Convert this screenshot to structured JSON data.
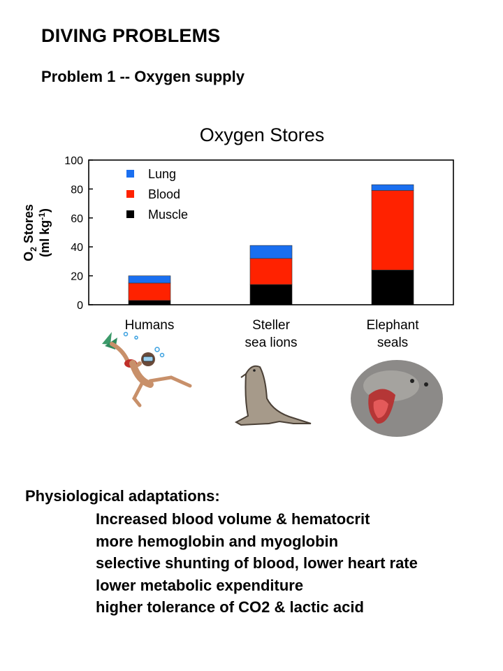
{
  "slide": {
    "title": "DIVING PROBLEMS",
    "subtitle": "Problem 1 -- Oxygen supply"
  },
  "chart_data": {
    "type": "bar",
    "stacked": true,
    "title": "Oxygen Stores",
    "ylabel": "O2 Stores (ml kg-1)",
    "xlabel": "",
    "ylim": [
      0,
      100
    ],
    "yticks": [
      0,
      20,
      40,
      60,
      80,
      100
    ],
    "grid": false,
    "legend_position": "top-left",
    "categories": [
      "Humans",
      "Steller sea lions",
      "Elephant seals"
    ],
    "category_lines": [
      [
        "Humans"
      ],
      [
        "Steller",
        "sea lions"
      ],
      [
        "Elephant",
        "seals"
      ]
    ],
    "series": [
      {
        "name": "Muscle",
        "color": "#000000",
        "values": [
          3,
          14,
          24
        ]
      },
      {
        "name": "Blood",
        "color": "#ff2200",
        "values": [
          12,
          18,
          55
        ]
      },
      {
        "name": "Lung",
        "color": "#1a6ff0",
        "values": [
          5,
          9,
          4
        ]
      }
    ],
    "legend_order": [
      "Lung",
      "Blood",
      "Muscle"
    ]
  },
  "illustrations": [
    "scuba-diver",
    "sea-lion",
    "elephant-seal"
  ],
  "adaptations": {
    "heading": "Physiological adaptations:",
    "items": [
      "Increased blood volume & hematocrit",
      "more hemoglobin and myoglobin",
      "selective shunting of blood, lower heart rate",
      "lower metabolic expenditure",
      "higher tolerance of CO2 & lactic acid"
    ]
  }
}
